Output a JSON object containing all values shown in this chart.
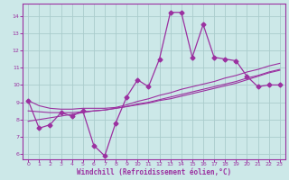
{
  "x": [
    0,
    1,
    2,
    3,
    4,
    5,
    6,
    7,
    8,
    9,
    10,
    11,
    12,
    13,
    14,
    15,
    16,
    17,
    18,
    19,
    20,
    21,
    22,
    23
  ],
  "y_main": [
    9.1,
    7.5,
    7.7,
    8.4,
    8.2,
    8.5,
    6.5,
    5.9,
    7.8,
    9.3,
    10.3,
    9.9,
    11.5,
    14.2,
    14.2,
    11.6,
    13.5,
    11.6,
    11.5,
    11.4,
    10.5,
    9.9,
    10.0,
    10.0
  ],
  "y_trend1": [
    9.1,
    8.8,
    8.65,
    8.6,
    8.6,
    8.65,
    8.65,
    8.65,
    8.7,
    8.85,
    9.05,
    9.2,
    9.4,
    9.55,
    9.75,
    9.9,
    10.05,
    10.2,
    10.4,
    10.55,
    10.75,
    10.9,
    11.1,
    11.25
  ],
  "y_trend2": [
    8.5,
    8.45,
    8.4,
    8.4,
    8.4,
    8.45,
    8.5,
    8.55,
    8.65,
    8.75,
    8.9,
    9.0,
    9.15,
    9.3,
    9.45,
    9.6,
    9.75,
    9.9,
    10.05,
    10.2,
    10.4,
    10.55,
    10.75,
    10.9
  ],
  "y_trend3": [
    7.9,
    8.0,
    8.1,
    8.2,
    8.3,
    8.4,
    8.5,
    8.55,
    8.65,
    8.75,
    8.85,
    8.95,
    9.1,
    9.2,
    9.35,
    9.5,
    9.65,
    9.8,
    9.95,
    10.1,
    10.3,
    10.5,
    10.7,
    10.85
  ],
  "line_color": "#9b30a0",
  "bg_color": "#cce8e8",
  "grid_color": "#aacccc",
  "xlabel": "Windchill (Refroidissement éolien,°C)",
  "xlim": [
    -0.5,
    23.5
  ],
  "ylim": [
    5.7,
    14.7
  ],
  "yticks": [
    6,
    7,
    8,
    9,
    10,
    11,
    12,
    13,
    14
  ],
  "xticks": [
    0,
    1,
    2,
    3,
    4,
    5,
    6,
    7,
    8,
    9,
    10,
    11,
    12,
    13,
    14,
    15,
    16,
    17,
    18,
    19,
    20,
    21,
    22,
    23
  ]
}
